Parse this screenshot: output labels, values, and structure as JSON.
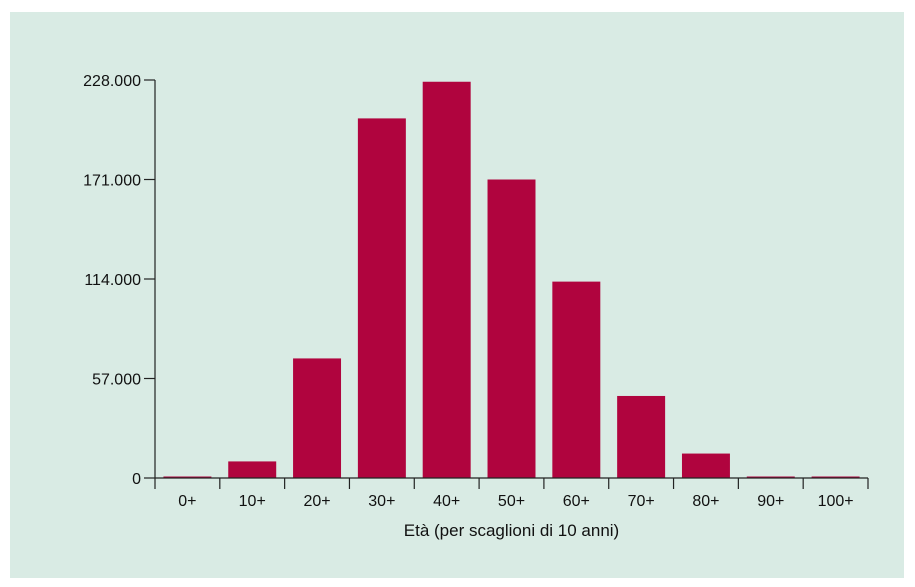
{
  "chart_data": {
    "type": "bar",
    "categories": [
      "0+",
      "10+",
      "20+",
      "30+",
      "40+",
      "50+",
      "60+",
      "70+",
      "80+",
      "90+",
      "100+"
    ],
    "values": [
      400,
      9500,
      68500,
      206000,
      227000,
      171000,
      112500,
      47000,
      14000,
      400,
      200
    ],
    "title": "",
    "xlabel": "Età (per scaglioni di 10 anni)",
    "ylabel": "",
    "ylim": [
      0,
      228000
    ],
    "yticks": [
      0,
      57000,
      114000,
      171000,
      228000
    ],
    "ytick_labels": [
      "0",
      "57.000",
      "114.000",
      "171.000",
      "228.000"
    ],
    "grid": false,
    "legend": "none",
    "colors": {
      "bar": "#b0043e",
      "background": "#d9ebe4",
      "axis": "#222222"
    }
  }
}
